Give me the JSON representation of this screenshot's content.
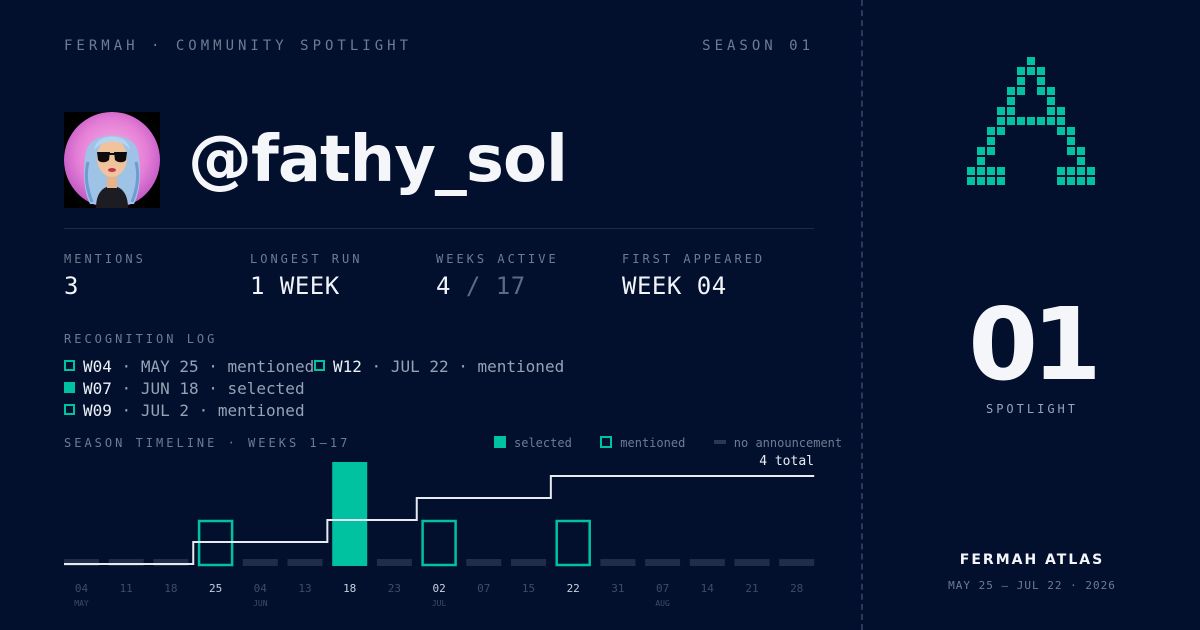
{
  "header": {
    "brand_line": "FERMAH · COMMUNITY SPOTLIGHT",
    "season": "SEASON 01"
  },
  "profile": {
    "handle": "@fathy_sol",
    "avatar_icon": "avatar-cartoon-woman-sunglasses"
  },
  "stats": [
    {
      "label": "MENTIONS",
      "value": "3"
    },
    {
      "label": "LONGEST RUN",
      "value": "1 WEEK"
    },
    {
      "label": "WEEKS ACTIVE",
      "value": "4",
      "value_total": "/ 17"
    },
    {
      "label": "FIRST APPEARED",
      "value": "WEEK 04"
    }
  ],
  "recognition_log": {
    "title": "RECOGNITION LOG",
    "entries": [
      {
        "week": "W04",
        "detail": "· MAY 25 · mentioned",
        "kind": "mentioned"
      },
      {
        "week": "W07",
        "detail": "· JUN 18 · selected",
        "kind": "selected"
      },
      {
        "week": "W09",
        "detail": "· JUL 2 · mentioned",
        "kind": "mentioned"
      },
      {
        "week": "W12",
        "detail": "· JUL 22 · mentioned",
        "kind": "mentioned"
      }
    ]
  },
  "timeline": {
    "title": "SEASON TIMELINE · WEEKS 1–17",
    "legend": {
      "selected": "selected",
      "mentioned": "mentioned",
      "none": "no announcement"
    },
    "total_label": "4 total",
    "colors": {
      "accent": "#00c2a0",
      "empty": "#1f2d4b",
      "line": "#e6eaf1"
    }
  },
  "chart_data": {
    "type": "bar",
    "categories": [
      "04",
      "11",
      "18",
      "25",
      "04",
      "13",
      "18",
      "23",
      "02",
      "07",
      "15",
      "22",
      "31",
      "07",
      "14",
      "21",
      "28"
    ],
    "month_labels": [
      "MAY",
      "",
      "",
      "",
      "JUN",
      "",
      "",
      "",
      "JUL",
      "",
      "",
      "",
      "",
      "AUG",
      "",
      "",
      ""
    ],
    "highlighted_ticks": [
      3,
      6,
      8,
      11
    ],
    "status": [
      "none",
      "none",
      "none",
      "mentioned",
      "none",
      "none",
      "selected",
      "none",
      "mentioned",
      "none",
      "none",
      "mentioned",
      "none",
      "none",
      "none",
      "none",
      "none"
    ],
    "cumulative": [
      0,
      0,
      0,
      1,
      1,
      1,
      2,
      2,
      3,
      3,
      3,
      4,
      4,
      4,
      4,
      4,
      4
    ],
    "series": [
      {
        "name": "selected",
        "weeks": [
          7
        ]
      },
      {
        "name": "mentioned",
        "weeks": [
          4,
          9,
          12
        ]
      }
    ]
  },
  "sidebar": {
    "logo_icon": "fermah-pixel-a-logo",
    "number": "01",
    "number_label": "SPOTLIGHT",
    "footer_title": "FERMAH ATLAS",
    "footer_dates": "MAY 25 — JUL 22 · 2026"
  }
}
